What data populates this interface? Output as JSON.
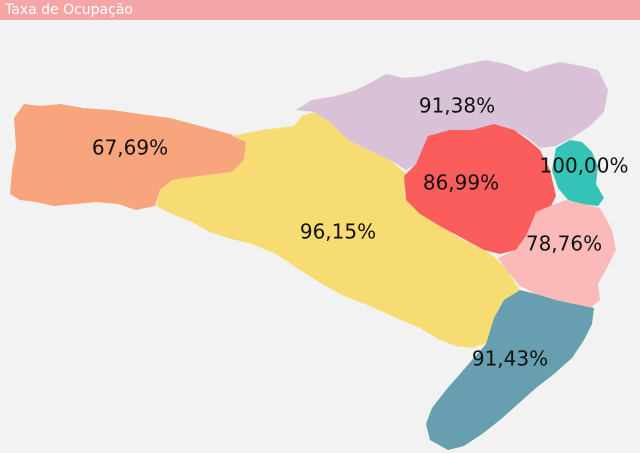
{
  "title": "Taxa de Ocupação",
  "regions": [
    {
      "id": "oeste",
      "value": "67,69%",
      "color": "#f8a57e"
    },
    {
      "id": "meio-oeste",
      "value": "96,15%",
      "color": "#f6dc72"
    },
    {
      "id": "norte",
      "value": "91,38%",
      "color": "#d9c1d8"
    },
    {
      "id": "vale",
      "value": "86,99%",
      "color": "#fb5c5c"
    },
    {
      "id": "foz",
      "value": "100,00%",
      "color": "#34c3b6"
    },
    {
      "id": "grande-flor",
      "value": "78,76%",
      "color": "#fbb9ba"
    },
    {
      "id": "sul",
      "value": "91,43%",
      "color": "#679fb0"
    }
  ]
}
